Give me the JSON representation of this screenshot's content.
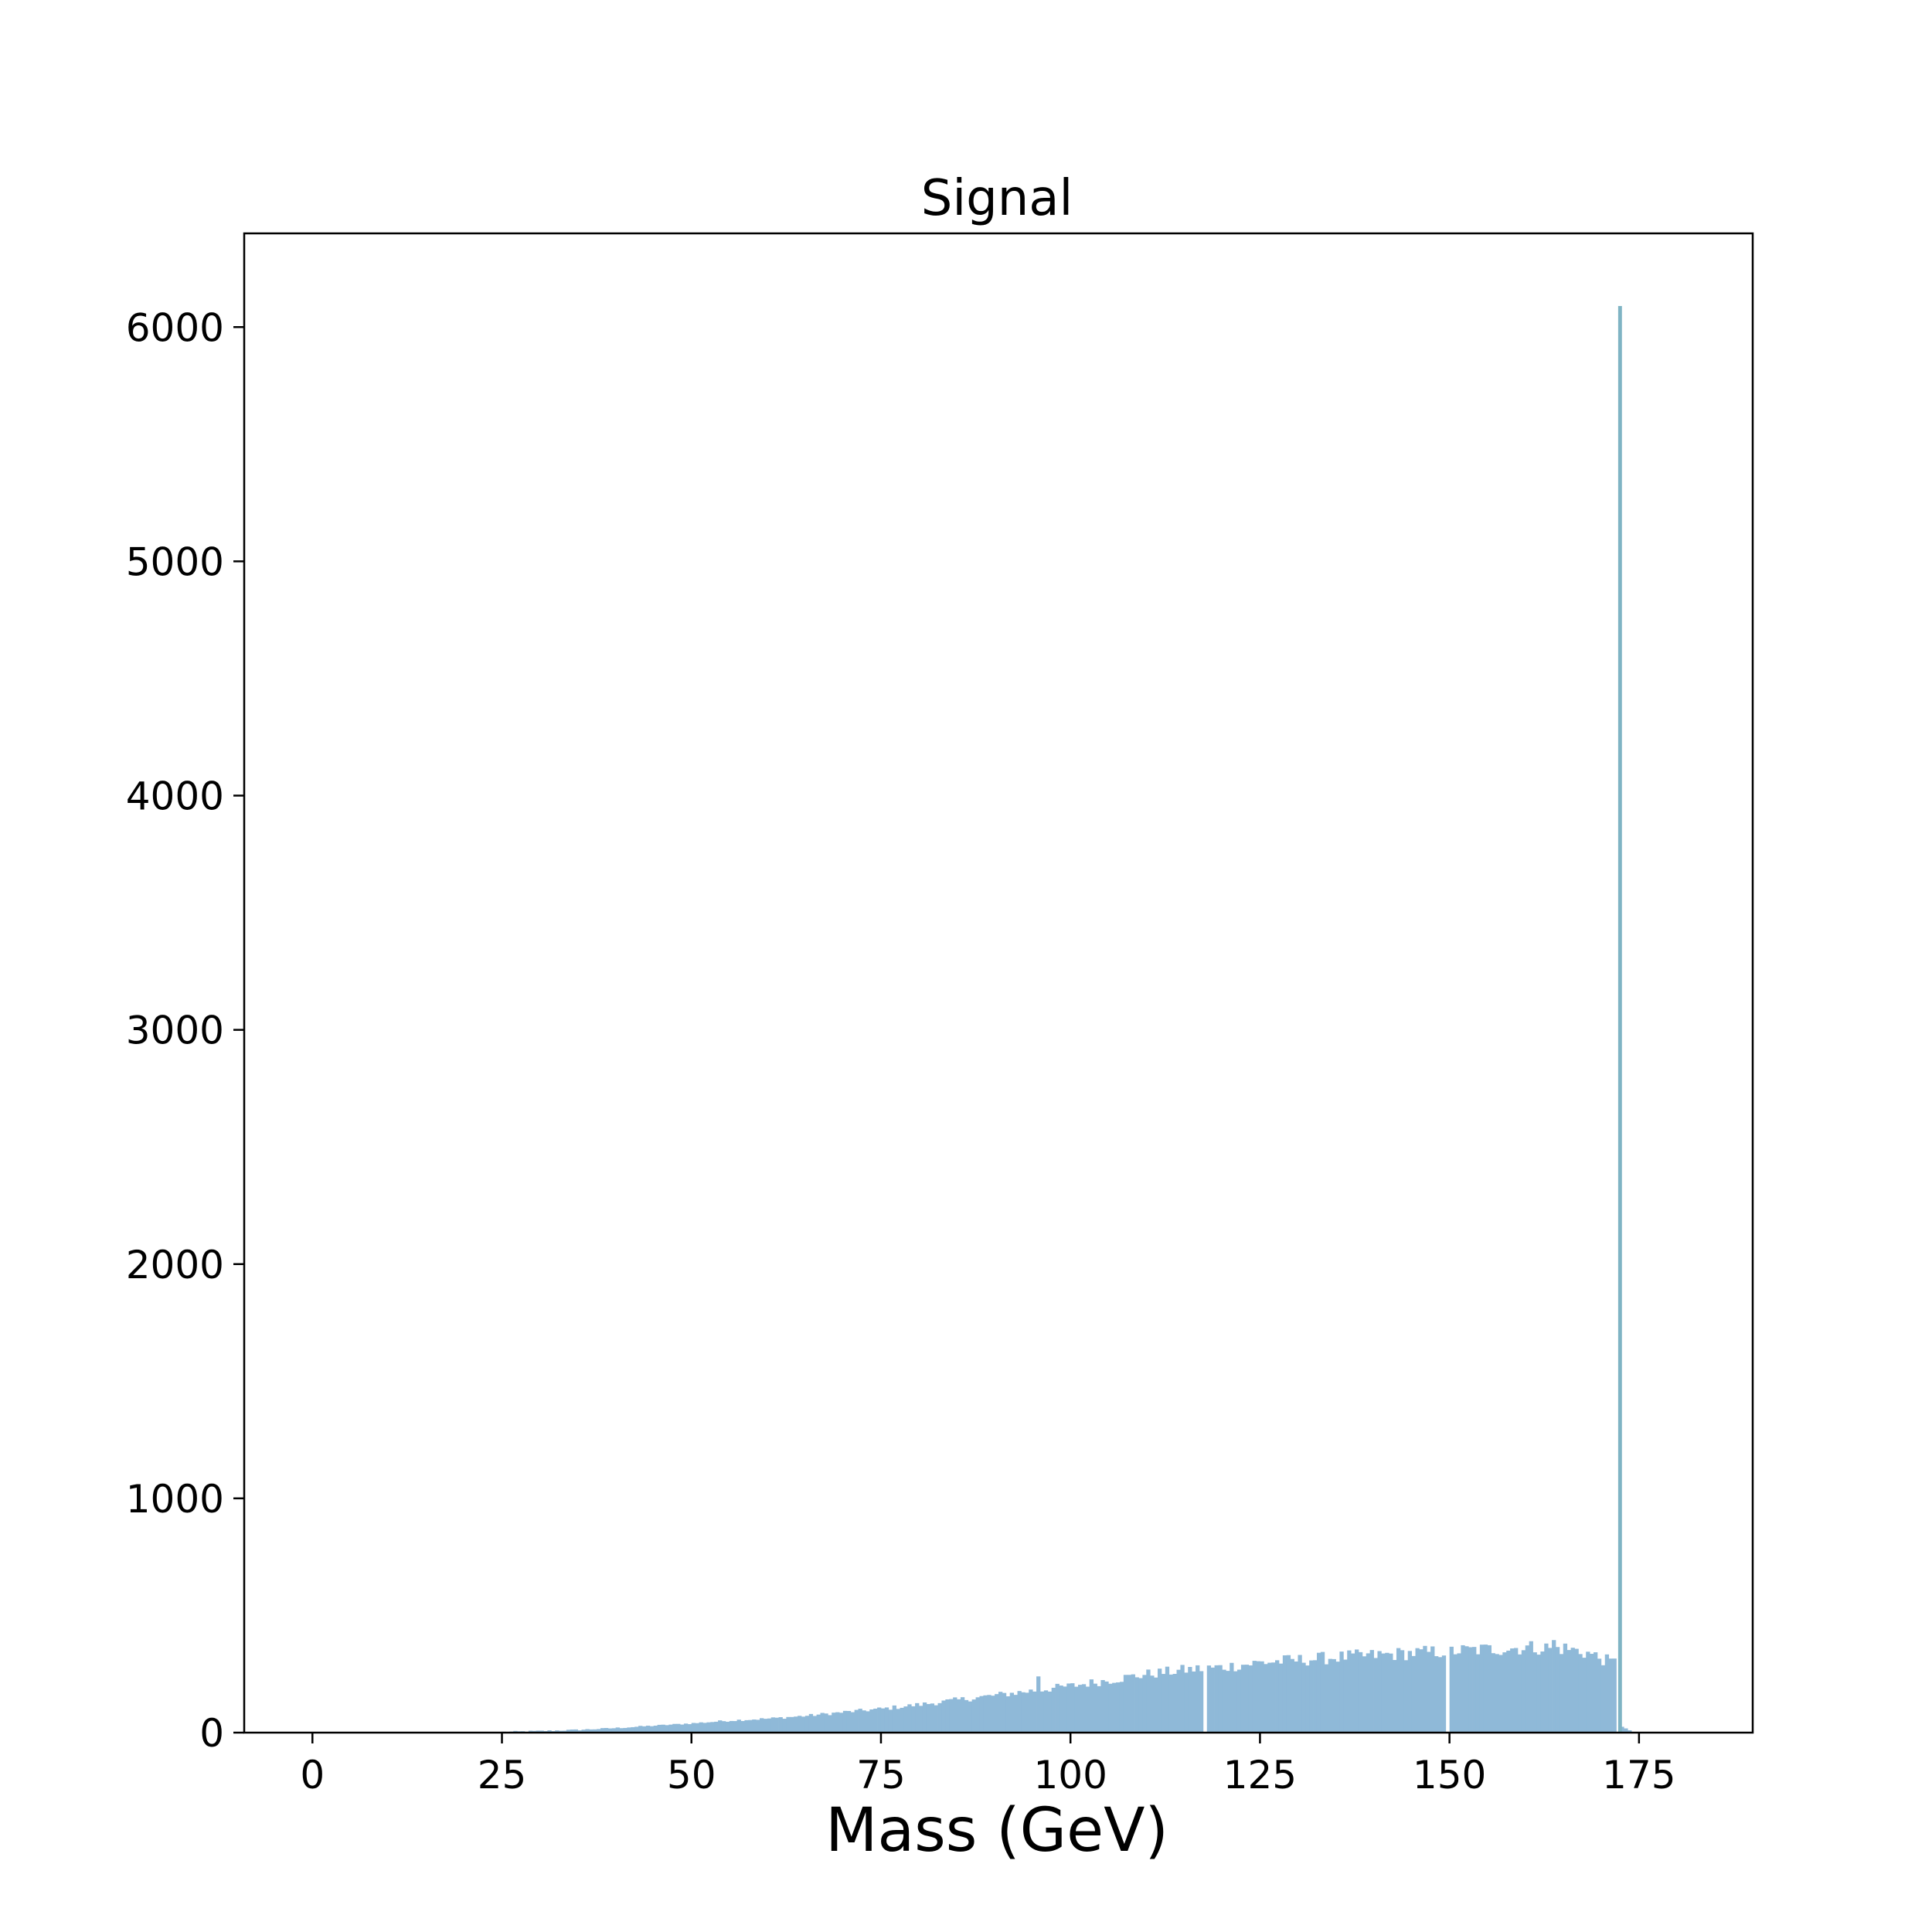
{
  "chart_data": {
    "type": "bar",
    "title": "Signal",
    "xlabel": "Mass (GeV)",
    "ylabel": "",
    "xlim": [
      -9,
      190
    ],
    "ylim": [
      0,
      6400
    ],
    "x_ticks": [
      0,
      25,
      50,
      75,
      100,
      125,
      150,
      175
    ],
    "y_ticks": [
      0,
      1000,
      2000,
      3000,
      4000,
      5000,
      6000
    ],
    "grid": false,
    "legend": "none",
    "bin_width": 0.5,
    "histogram": {
      "profile_points": [
        [
          25,
          3
        ],
        [
          30,
          7
        ],
        [
          35,
          12
        ],
        [
          40,
          20
        ],
        [
          45,
          30
        ],
        [
          50,
          40
        ],
        [
          55,
          52
        ],
        [
          60,
          60
        ],
        [
          65,
          72
        ],
        [
          70,
          88
        ],
        [
          75,
          102
        ],
        [
          80,
          120
        ],
        [
          85,
          140
        ],
        [
          90,
          160
        ],
        [
          95,
          180
        ],
        [
          100,
          200
        ],
        [
          105,
          225
        ],
        [
          110,
          250
        ],
        [
          115,
          268
        ],
        [
          120,
          280
        ],
        [
          125,
          300
        ],
        [
          130,
          310
        ],
        [
          135,
          322
        ],
        [
          140,
          330
        ],
        [
          145,
          340
        ],
        [
          150,
          348
        ],
        [
          155,
          356
        ],
        [
          160,
          364
        ],
        [
          165,
          360
        ],
        [
          168,
          340
        ],
        [
          171,
          300
        ]
      ],
      "fill_range": [
        25,
        172
      ],
      "peak": {
        "x": 172.25,
        "value": 6090
      },
      "tail_bins": [
        [
          172.5,
          25
        ],
        [
          173,
          18
        ],
        [
          173.5,
          10
        ]
      ],
      "notable_bins": [
        [
          95.5,
          240
        ],
        [
          117.5,
          0
        ],
        [
          149.5,
          0
        ],
        [
          163.5,
          395
        ]
      ]
    },
    "colors": {
      "fill": "#8fb9d8",
      "peak": "#7fb4c4"
    }
  }
}
